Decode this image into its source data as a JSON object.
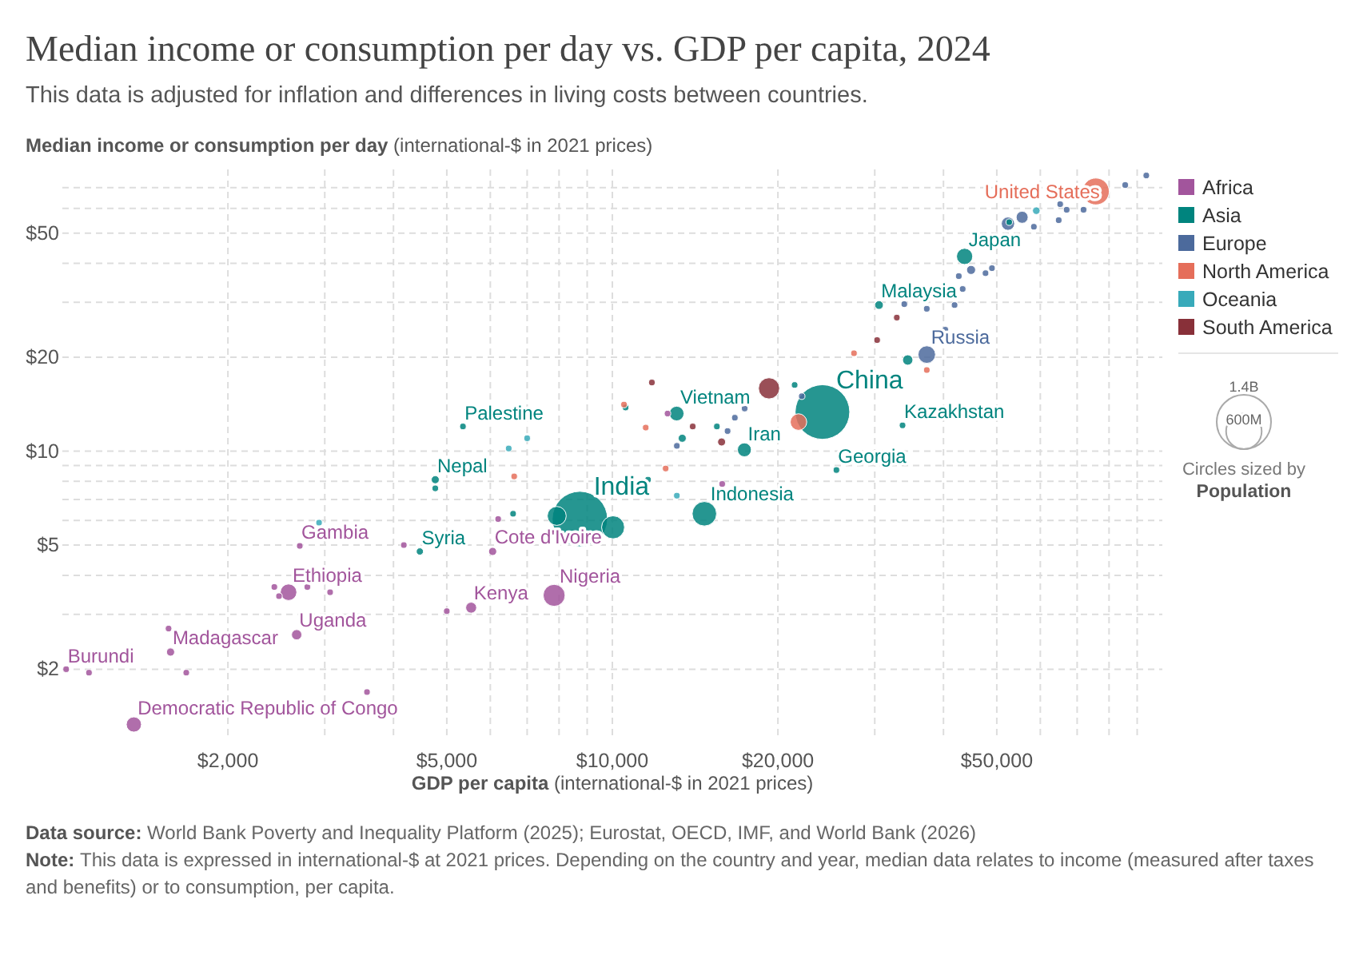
{
  "chart_data": {
    "type": "bubble",
    "title": "Median income or consumption per day vs. GDP per capita, 2024",
    "subtitle": "This data is adjusted for inflation and differences in living costs between countries.",
    "ylabel": "Median income or consumption per day (international-$ in 2021 prices)",
    "xlabel": "GDP per capita (international-$ in 2021 prices)",
    "log": "xy",
    "grid": true,
    "legend": "right",
    "xlim": [
      1000,
      100000
    ],
    "ylim": [
      1.2,
      80
    ],
    "xticks": [
      {
        "value": 2000,
        "label": "$2,000"
      },
      {
        "value": 3000,
        "label": null
      },
      {
        "value": 4000,
        "label": null
      },
      {
        "value": 5000,
        "label": "$5,000"
      },
      {
        "value": 6000,
        "label": null
      },
      {
        "value": 7000,
        "label": null
      },
      {
        "value": 8000,
        "label": null
      },
      {
        "value": 9000,
        "label": null
      },
      {
        "value": 10000,
        "label": "$10,000"
      },
      {
        "value": 20000,
        "label": "$20,000"
      },
      {
        "value": 30000,
        "label": null
      },
      {
        "value": 40000,
        "label": null
      },
      {
        "value": 50000,
        "label": "$50,000"
      },
      {
        "value": 60000,
        "label": null
      },
      {
        "value": 70000,
        "label": null
      },
      {
        "value": 80000,
        "label": null
      },
      {
        "value": 90000,
        "label": null
      }
    ],
    "yticks": [
      {
        "value": 2,
        "label": "$2"
      },
      {
        "value": 3,
        "label": null
      },
      {
        "value": 4,
        "label": null
      },
      {
        "value": 5,
        "label": "$5"
      },
      {
        "value": 6,
        "label": null
      },
      {
        "value": 7,
        "label": null
      },
      {
        "value": 8,
        "label": null
      },
      {
        "value": 9,
        "label": null
      },
      {
        "value": 10,
        "label": "$10"
      },
      {
        "value": 20,
        "label": "$20"
      },
      {
        "value": 30,
        "label": null
      },
      {
        "value": 40,
        "label": null
      },
      {
        "value": 50,
        "label": "$50"
      },
      {
        "value": 60,
        "label": null
      },
      {
        "value": 70,
        "label": null
      }
    ],
    "size_legend": [
      {
        "value": 600,
        "label": "600M"
      },
      {
        "value": 1400,
        "label": "1.4B"
      }
    ],
    "series": [
      {
        "name": "Africa",
        "color": "#a2559c",
        "x": [
          1016,
          1118,
          1573,
          1560,
          1680,
          1349,
          3580,
          2702,
          2578,
          2429,
          2477,
          2789,
          3068,
          2667,
          5537,
          5000,
          4177,
          6058,
          6200,
          7837,
          15840,
          12600
        ],
        "values": [
          2.0,
          1.95,
          2.27,
          2.7,
          1.95,
          1.33,
          1.69,
          4.97,
          3.53,
          3.67,
          3.43,
          3.67,
          3.53,
          2.58,
          3.15,
          3.07,
          5.0,
          4.77,
          6.06,
          3.45,
          7.85,
          13.2
        ],
        "sizes": [
          20,
          20,
          31,
          20,
          20,
          109,
          20,
          20,
          129,
          20,
          20,
          20,
          20,
          50,
          56,
          20,
          20,
          31,
          20,
          228,
          20,
          20
        ]
      },
      {
        "name": "Asia",
        "color": "#00847e",
        "x": [
          5350,
          4765,
          4765,
          4467,
          8729,
          7924,
          10030,
          6600,
          11610,
          14700,
          13090,
          10570,
          13400,
          17380,
          15490,
          24100,
          21450,
          25550,
          33700,
          34440,
          30540,
          43700,
          52670
        ],
        "values": [
          12.0,
          8.1,
          7.6,
          4.77,
          6.06,
          6.2,
          5.7,
          6.3,
          8.1,
          6.3,
          13.2,
          13.8,
          11.0,
          10.1,
          12.0,
          13.35,
          16.3,
          8.7,
          12.1,
          19.6,
          29.4,
          42.1,
          54.2
        ],
        "sizes": [
          20,
          30,
          20,
          24,
          1450,
          170,
          250,
          20,
          20,
          283,
          101,
          20,
          30,
          91,
          20,
          1410,
          20,
          20,
          20,
          50,
          35,
          124,
          20
        ]
      },
      {
        "name": "Europe",
        "color": "#4c6a9c",
        "x": [
          37300,
          40300,
          33950,
          37300,
          41900,
          43350,
          42650,
          44900,
          47700,
          49000,
          55600,
          52400,
          58400,
          64800,
          65200,
          67000,
          71900,
          85600,
          93500,
          16700,
          16200,
          17400,
          13100,
          22100
        ],
        "values": [
          20.4,
          24.5,
          29.6,
          28.6,
          29.4,
          33.1,
          36.4,
          38.1,
          37.2,
          38.6,
          56.2,
          53.6,
          52.4,
          55,
          61.9,
          59.4,
          59.4,
          71.3,
          76.5,
          12.8,
          11.6,
          13.7,
          10.4,
          15
        ],
        "sizes": [
          144,
          20,
          20,
          20,
          20,
          20,
          20,
          38,
          20,
          20,
          68,
          83,
          20,
          20,
          20,
          20,
          20,
          20,
          20,
          20,
          20,
          20,
          20,
          20
        ]
      },
      {
        "name": "North America",
        "color": "#e56e5a",
        "x": [
          75700,
          21800,
          27500,
          37300,
          10500,
          11500,
          12500,
          6630
        ],
        "values": [
          68,
          12.4,
          20.6,
          18.2,
          14.1,
          11.9,
          8.8,
          8.3
        ],
        "sizes": [
          340,
          129,
          20,
          20,
          20,
          20,
          20,
          20
        ]
      },
      {
        "name": "Oceania",
        "color": "#38aaba",
        "x": [
          59000,
          2929,
          6480,
          7000,
          13100
        ],
        "values": [
          59,
          5.9,
          10.2,
          11.0,
          7.2
        ],
        "sizes": [
          27,
          20,
          20,
          20,
          20
        ]
      },
      {
        "name": "South America",
        "color": "#883039",
        "x": [
          19270,
          11800,
          14000,
          15800,
          30300,
          32900
        ],
        "values": [
          15.9,
          16.6,
          12,
          10.7,
          22.7,
          26.8
        ],
        "sizes": [
          212,
          20,
          20,
          30,
          20,
          20
        ]
      }
    ],
    "annotations": [
      "Circles sized by Population",
      "Data source: World Bank Poverty and Inequality Platform (2025); Eurostat, OECD, IMF, and World Bank (2026)",
      "Note: This data is expressed in international-$ at 2021 prices. Depending on the country and year, median data relates to income (measured after taxes and benefits) or to consumption, per capita.",
      {
        "text": "Burundi",
        "x": 1016,
        "y": 2.0
      },
      {
        "text": "Madagascar",
        "x": 1573,
        "y": 2.27
      },
      {
        "text": "Democratic Republic of Congo",
        "x": 1349,
        "y": 1.33
      },
      {
        "text": "Gambia",
        "x": 2702,
        "y": 4.97
      },
      {
        "text": "Ethiopia",
        "x": 2578,
        "y": 3.53
      },
      {
        "text": "Uganda",
        "x": 2667,
        "y": 2.58
      },
      {
        "text": "Kenya",
        "x": 5537,
        "y": 3.15
      },
      {
        "text": "Cote d'Ivoire",
        "x": 6058,
        "y": 4.77
      },
      {
        "text": "Nigeria",
        "x": 7837,
        "y": 3.45
      },
      {
        "text": "Palestine",
        "x": 5350,
        "y": 12.0
      },
      {
        "text": "Nepal",
        "x": 4765,
        "y": 8.1
      },
      {
        "text": "Syria",
        "x": 4467,
        "y": 4.77
      },
      {
        "text": "India",
        "x": 8729,
        "y": 6.06
      },
      {
        "text": "Indonesia",
        "x": 14700,
        "y": 6.3
      },
      {
        "text": "Vietnam",
        "x": 13090,
        "y": 13.2
      },
      {
        "text": "Iran",
        "x": 17380,
        "y": 10.1
      },
      {
        "text": "China",
        "x": 24100,
        "y": 13.35
      },
      {
        "text": "Georgia",
        "x": 25550,
        "y": 8.7
      },
      {
        "text": "Kazakhstan",
        "x": 33700,
        "y": 12.1
      },
      {
        "text": "Malaysia",
        "x": 30540,
        "y": 29.4
      },
      {
        "text": "Japan",
        "x": 43700,
        "y": 42.1
      },
      {
        "text": "Russia",
        "x": 37300,
        "y": 20.4
      },
      {
        "text": "United States",
        "x": 75700,
        "y": 68
      }
    ]
  }
}
